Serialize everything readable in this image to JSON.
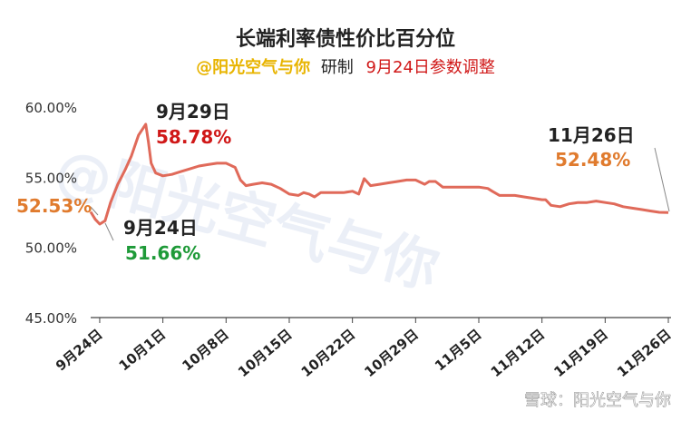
{
  "chart_data": {
    "type": "line",
    "title": "长端利率债性价比百分位",
    "subtitle": {
      "author": "@阳光空气与你",
      "made": "研制",
      "note": "9月24日参数调整"
    },
    "xlabel": "",
    "ylabel": "",
    "ylim": [
      45,
      60
    ],
    "yticks": [
      "60.00%",
      "55.00%",
      "50.00%",
      "45.00%"
    ],
    "ytick_values": [
      60,
      55,
      50,
      45
    ],
    "xticks": [
      "9月24日",
      "10月1日",
      "10月8日",
      "10月15日",
      "10月22日",
      "10月29日",
      "11月5日",
      "11月12日",
      "11月19日",
      "11月26日"
    ],
    "xtick_day_index": [
      0,
      7,
      14,
      21,
      28,
      35,
      42,
      49,
      56,
      63
    ],
    "grid": false,
    "legend": "none",
    "series": [
      {
        "color": "#e06a5a",
        "x": [
          -1,
          -0.5,
          0,
          0.6,
          1.2,
          2,
          2.8,
          3.5,
          4.3,
          5.1,
          5.4,
          5.7,
          6.2,
          7,
          8,
          9,
          10,
          11,
          12,
          13,
          14,
          15,
          15.6,
          16.2,
          17,
          18,
          19,
          20,
          21,
          22,
          22.6,
          23.2,
          23.8,
          24.5,
          25.2,
          26,
          27,
          28,
          28.7,
          29.3,
          30,
          31,
          32,
          33,
          34,
          35,
          36,
          36.5,
          37.2,
          38,
          38.5,
          39.2,
          40,
          41,
          42,
          43,
          43.5,
          44.3,
          45,
          46,
          47,
          48,
          49,
          49.4,
          50,
          51,
          52,
          53,
          54,
          55,
          56,
          57,
          58,
          59,
          60,
          61,
          62,
          63
        ],
        "y": [
          52.53,
          52.0,
          51.66,
          51.9,
          53.2,
          54.5,
          55.5,
          56.5,
          58.0,
          58.78,
          57.5,
          56.0,
          55.3,
          55.1,
          55.2,
          55.4,
          55.6,
          55.8,
          55.9,
          56.0,
          56.0,
          55.7,
          54.8,
          54.4,
          54.5,
          54.6,
          54.5,
          54.2,
          53.8,
          53.7,
          53.9,
          53.8,
          53.6,
          53.9,
          53.9,
          53.9,
          53.9,
          54.0,
          53.8,
          54.9,
          54.4,
          54.5,
          54.6,
          54.7,
          54.8,
          54.8,
          54.5,
          54.7,
          54.7,
          54.3,
          54.3,
          54.3,
          54.3,
          54.3,
          54.3,
          54.2,
          54.0,
          53.7,
          53.7,
          53.7,
          53.6,
          53.5,
          53.4,
          53.4,
          53.0,
          52.9,
          53.1,
          53.2,
          53.2,
          53.3,
          53.2,
          53.1,
          52.9,
          52.8,
          52.7,
          52.6,
          52.5,
          52.48
        ]
      }
    ],
    "annotations": [
      {
        "date": "",
        "value": "52.53%",
        "value_color": "#e07b2e"
      },
      {
        "date": "9月29日",
        "value": "58.78%",
        "value_color": "#d01818"
      },
      {
        "date": "9月24日",
        "value": "51.66%",
        "value_color": "#1e9a38"
      },
      {
        "date": "11月26日",
        "value": "52.48%",
        "value_color": "#e07b2e"
      }
    ]
  },
  "watermark": "@阳光空气与你",
  "footer": "雪球：阳光空气与你",
  "colors": {
    "line": "#e06a5a",
    "author": "#e8b400",
    "note": "#d01818",
    "axis": "#444444"
  }
}
